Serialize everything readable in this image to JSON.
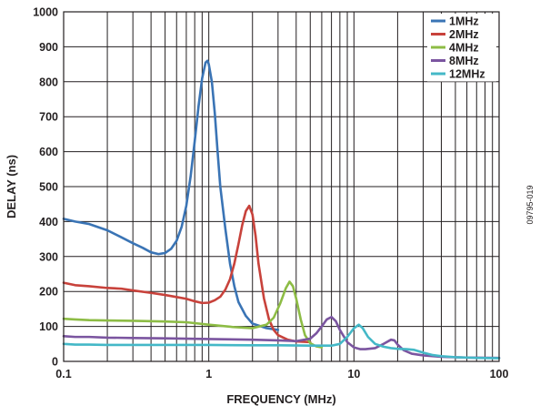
{
  "chart_data": {
    "type": "line",
    "title": "",
    "xlabel": "FREQUENCY (MHz)",
    "ylabel": "DELAY (ns)",
    "x_scale": "log",
    "xlim": [
      0.1,
      100
    ],
    "ylim": [
      0,
      1000
    ],
    "x_ticks": [
      0.1,
      1,
      10,
      100
    ],
    "x_tick_labels": [
      "0.1",
      "1",
      "10",
      "100"
    ],
    "y_ticks": [
      0,
      100,
      200,
      300,
      400,
      500,
      600,
      700,
      800,
      900,
      1000
    ],
    "y_tick_labels": [
      "0",
      "100",
      "200",
      "300",
      "400",
      "500",
      "600",
      "700",
      "800",
      "900",
      "1000"
    ],
    "grid": true,
    "legend_position": "top-right",
    "figure_id": "09795-019",
    "series": [
      {
        "name": "1MHz",
        "color": "#3a74b5",
        "points": [
          [
            0.1,
            408
          ],
          [
            0.12,
            400
          ],
          [
            0.15,
            393
          ],
          [
            0.2,
            375
          ],
          [
            0.25,
            355
          ],
          [
            0.3,
            338
          ],
          [
            0.35,
            325
          ],
          [
            0.4,
            312
          ],
          [
            0.45,
            307
          ],
          [
            0.5,
            310
          ],
          [
            0.55,
            322
          ],
          [
            0.6,
            345
          ],
          [
            0.65,
            385
          ],
          [
            0.7,
            445
          ],
          [
            0.75,
            530
          ],
          [
            0.8,
            630
          ],
          [
            0.85,
            730
          ],
          [
            0.9,
            810
          ],
          [
            0.95,
            855
          ],
          [
            0.98,
            860
          ],
          [
            1.0,
            850
          ],
          [
            1.05,
            800
          ],
          [
            1.1,
            710
          ],
          [
            1.15,
            600
          ],
          [
            1.2,
            500
          ],
          [
            1.3,
            380
          ],
          [
            1.4,
            280
          ],
          [
            1.5,
            215
          ],
          [
            1.6,
            170
          ],
          [
            1.8,
            130
          ],
          [
            2.0,
            108
          ],
          [
            2.5,
            95
          ],
          [
            3.0,
            90
          ]
        ]
      },
      {
        "name": "2MHz",
        "color": "#c8423b",
        "points": [
          [
            0.1,
            225
          ],
          [
            0.12,
            218
          ],
          [
            0.15,
            215
          ],
          [
            0.2,
            210
          ],
          [
            0.25,
            208
          ],
          [
            0.3,
            203
          ],
          [
            0.4,
            196
          ],
          [
            0.5,
            190
          ],
          [
            0.6,
            184
          ],
          [
            0.7,
            179
          ],
          [
            0.8,
            172
          ],
          [
            0.9,
            167
          ],
          [
            1.0,
            168
          ],
          [
            1.1,
            175
          ],
          [
            1.2,
            185
          ],
          [
            1.3,
            205
          ],
          [
            1.4,
            235
          ],
          [
            1.5,
            280
          ],
          [
            1.6,
            335
          ],
          [
            1.7,
            390
          ],
          [
            1.8,
            430
          ],
          [
            1.9,
            445
          ],
          [
            2.0,
            420
          ],
          [
            2.1,
            360
          ],
          [
            2.2,
            280
          ],
          [
            2.4,
            180
          ],
          [
            2.6,
            120
          ],
          [
            2.8,
            90
          ],
          [
            3.0,
            75
          ],
          [
            3.5,
            62
          ],
          [
            4.0,
            57
          ],
          [
            5.0,
            55
          ]
        ]
      },
      {
        "name": "4MHz",
        "color": "#8dbc45",
        "points": [
          [
            0.1,
            122
          ],
          [
            0.12,
            120
          ],
          [
            0.15,
            118
          ],
          [
            0.2,
            117
          ],
          [
            0.3,
            116
          ],
          [
            0.5,
            114
          ],
          [
            0.7,
            112
          ],
          [
            1.0,
            105
          ],
          [
            1.5,
            98
          ],
          [
            2.0,
            95
          ],
          [
            2.5,
            105
          ],
          [
            2.8,
            125
          ],
          [
            3.1,
            165
          ],
          [
            3.4,
            210
          ],
          [
            3.6,
            228
          ],
          [
            3.8,
            215
          ],
          [
            4.0,
            180
          ],
          [
            4.3,
            120
          ],
          [
            4.6,
            75
          ],
          [
            5.0,
            52
          ],
          [
            5.5,
            43
          ],
          [
            6.0,
            40
          ]
        ]
      },
      {
        "name": "8MHz",
        "color": "#7b55a0",
        "points": [
          [
            0.1,
            72
          ],
          [
            0.12,
            70
          ],
          [
            0.15,
            70
          ],
          [
            0.2,
            68
          ],
          [
            0.3,
            67
          ],
          [
            0.5,
            66
          ],
          [
            1.0,
            64
          ],
          [
            2.0,
            62
          ],
          [
            3.0,
            60
          ],
          [
            4.0,
            58
          ],
          [
            5.0,
            65
          ],
          [
            5.5,
            80
          ],
          [
            6.0,
            100
          ],
          [
            6.5,
            120
          ],
          [
            7.0,
            127
          ],
          [
            7.5,
            115
          ],
          [
            8.0,
            90
          ],
          [
            9.0,
            55
          ],
          [
            10.0,
            40
          ],
          [
            11.0,
            35
          ],
          [
            12.0,
            35
          ],
          [
            14.0,
            38
          ],
          [
            16.0,
            50
          ],
          [
            18.0,
            62
          ],
          [
            19.0,
            60
          ],
          [
            20.0,
            48
          ],
          [
            22.0,
            32
          ],
          [
            25.0,
            22
          ],
          [
            30.0,
            17
          ],
          [
            40.0,
            13
          ],
          [
            60.0,
            11
          ],
          [
            100.0,
            10
          ]
        ]
      },
      {
        "name": "12MHz",
        "color": "#44b8c7",
        "points": [
          [
            0.1,
            50
          ],
          [
            0.12,
            48
          ],
          [
            0.15,
            48
          ],
          [
            0.2,
            47
          ],
          [
            0.3,
            47
          ],
          [
            0.5,
            47
          ],
          [
            1.0,
            47
          ],
          [
            2.0,
            46
          ],
          [
            3.0,
            46
          ],
          [
            5.0,
            45
          ],
          [
            7.0,
            45
          ],
          [
            8.0,
            50
          ],
          [
            9.0,
            70
          ],
          [
            10.0,
            95
          ],
          [
            10.8,
            105
          ],
          [
            11.5,
            95
          ],
          [
            12.5,
            70
          ],
          [
            14.0,
            50
          ],
          [
            16.0,
            42
          ],
          [
            18.0,
            38
          ],
          [
            20.0,
            36
          ],
          [
            23.0,
            35
          ],
          [
            26.0,
            33
          ],
          [
            30.0,
            25
          ],
          [
            35.0,
            18
          ],
          [
            40.0,
            15
          ],
          [
            50.0,
            12
          ],
          [
            70.0,
            10
          ],
          [
            100.0,
            9
          ]
        ]
      }
    ]
  }
}
